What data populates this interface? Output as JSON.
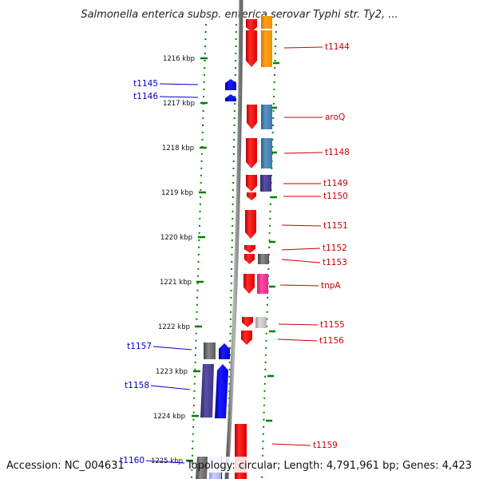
{
  "title": "Salmonella enterica subsp. enterica serovar Typhi str. Ty2, ...",
  "footer": {
    "accession": "Accession: NC_004631",
    "stats": "Topology: circular; Length: 4,791,961 bp; Genes: 4,423"
  },
  "axis": {
    "unit": "kbp",
    "ticks": [
      {
        "label": "1216 kbp"
      },
      {
        "label": "1217 kbp"
      },
      {
        "label": "1218 kbp"
      },
      {
        "label": "1219 kbp"
      },
      {
        "label": "1220 kbp"
      },
      {
        "label": "1221 kbp"
      },
      {
        "label": "1222 kbp"
      },
      {
        "label": "1223 kbp"
      },
      {
        "label": "1224 kbp"
      },
      {
        "label": "1225 kbp"
      }
    ]
  },
  "colors": {
    "forward_gene": "#ff0000",
    "reverse_gene": "#0000ff",
    "backbone": "#888888",
    "dotted_track": "#008000",
    "right_label": "#cc0000",
    "left_label": "#0000cc",
    "cog_orange": "#ff9900",
    "cog_steelblue": "#4682b4",
    "cog_darkslate": "#483d8b",
    "cog_gray": "#666666",
    "cog_pink": "#ff3399",
    "cog_lightgray": "#c0c0c0"
  },
  "genes_right": [
    {
      "label": "t1144"
    },
    {
      "label": "aroQ"
    },
    {
      "label": "t1148"
    },
    {
      "label": "t1149"
    },
    {
      "label": "t1150"
    },
    {
      "label": "t1151"
    },
    {
      "label": "t1152"
    },
    {
      "label": "t1153"
    },
    {
      "label": "tnpA"
    },
    {
      "label": "t1155"
    },
    {
      "label": "t1156"
    },
    {
      "label": "t1159"
    }
  ],
  "genes_left": [
    {
      "label": "t1145"
    },
    {
      "label": "t1146"
    },
    {
      "label": "t1157"
    },
    {
      "label": "t1158"
    },
    {
      "label": "t1160"
    }
  ]
}
